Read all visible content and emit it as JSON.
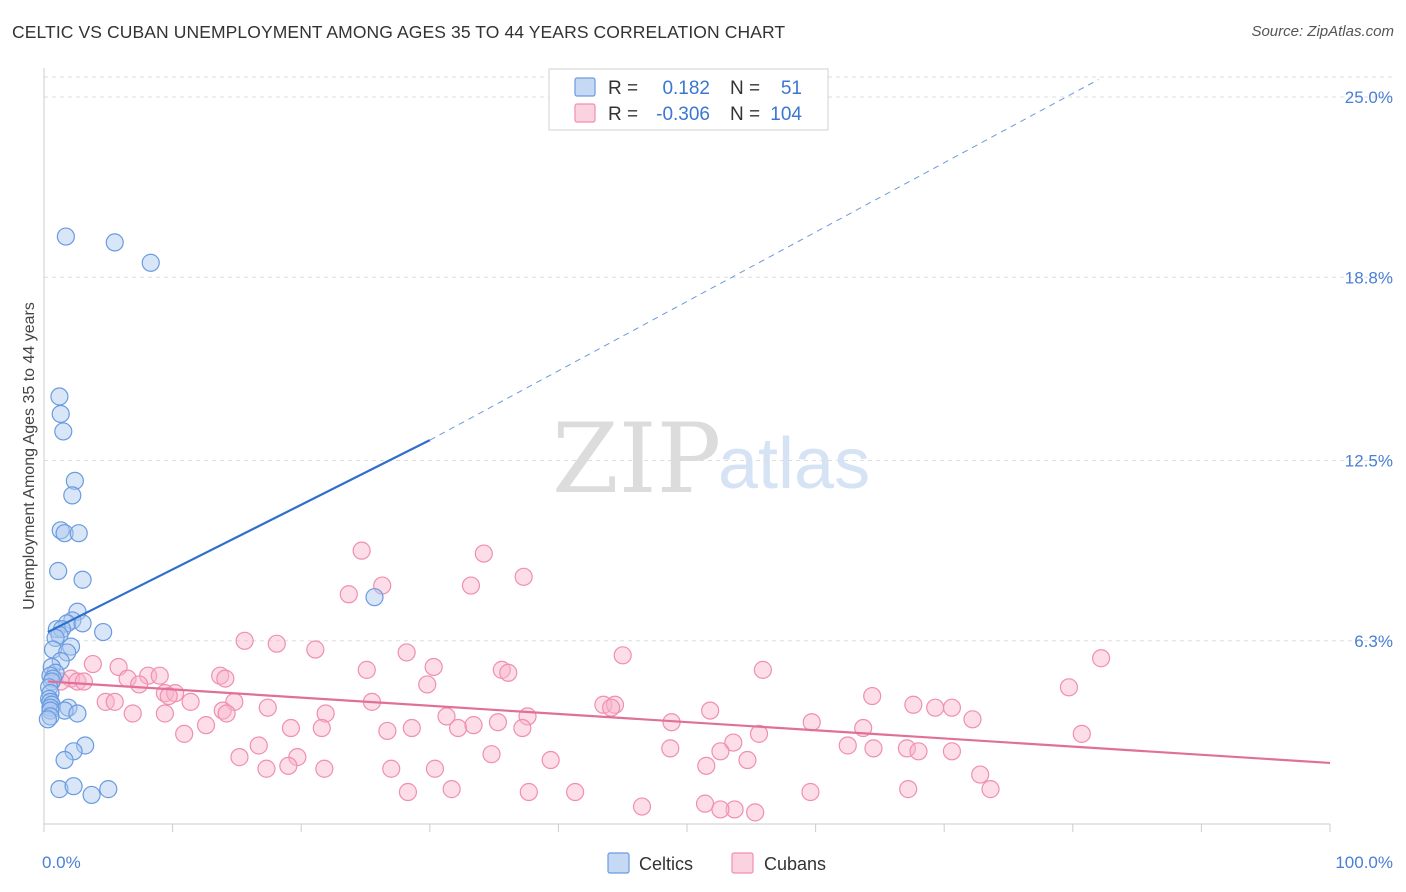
{
  "title": "CELTIC VS CUBAN UNEMPLOYMENT AMONG AGES 35 TO 44 YEARS CORRELATION CHART",
  "source": "Source: ZipAtlas.com",
  "watermark": {
    "zip": "ZIP",
    "atlas": "atlas"
  },
  "legend": {
    "r_label": "R =",
    "n_label": "N =",
    "rows": [
      {
        "r": "0.182",
        "n": "51"
      },
      {
        "r": "-0.306",
        "n": "104"
      }
    ]
  },
  "chart_data": {
    "type": "scatter",
    "xlabel": "",
    "ylabel": "Unemployment Among Ages 35 to 44 years",
    "xlim": [
      0,
      100
    ],
    "ylim": [
      0,
      25.0
    ],
    "x_ticks": [
      {
        "value": 0,
        "label": "0.0%"
      },
      {
        "value": 100,
        "label": "100.0%"
      }
    ],
    "y_ticks": [
      {
        "value": 6.3,
        "label": "6.3%"
      },
      {
        "value": 12.5,
        "label": "12.5%"
      },
      {
        "value": 18.8,
        "label": "18.8%"
      },
      {
        "value": 25.0,
        "label": "25.0%"
      }
    ],
    "grid": true,
    "legend_position": "bottom-center",
    "colors": {
      "celtics": "#6a9be0",
      "cubans": "#f08fb0",
      "celtics_line": "#2f6fcc",
      "cubans_line": "#e0709a"
    },
    "series": [
      {
        "name": "Celtics",
        "color": "#6a9be0",
        "trend": {
          "x0": 0.3,
          "y0": 6.6,
          "x1": 30,
          "y1": 13.2,
          "dash_to_x": 82,
          "dash_to_y": 25.6
        },
        "points": [
          [
            1.7,
            20.2
          ],
          [
            5.5,
            20.0
          ],
          [
            8.3,
            19.3
          ],
          [
            1.2,
            14.7
          ],
          [
            1.3,
            14.1
          ],
          [
            1.5,
            13.5
          ],
          [
            2.4,
            11.8
          ],
          [
            2.2,
            11.3
          ],
          [
            1.3,
            10.1
          ],
          [
            1.6,
            10.0
          ],
          [
            2.7,
            10.0
          ],
          [
            1.1,
            8.7
          ],
          [
            3.0,
            8.4
          ],
          [
            2.6,
            7.3
          ],
          [
            2.2,
            7.0
          ],
          [
            1.8,
            6.9
          ],
          [
            3.0,
            6.9
          ],
          [
            1.0,
            6.7
          ],
          [
            1.4,
            6.7
          ],
          [
            4.6,
            6.6
          ],
          [
            1.2,
            6.5
          ],
          [
            0.9,
            6.4
          ],
          [
            2.1,
            6.1
          ],
          [
            0.7,
            6.0
          ],
          [
            1.8,
            5.9
          ],
          [
            1.3,
            5.6
          ],
          [
            0.6,
            5.4
          ],
          [
            0.9,
            5.2
          ],
          [
            0.5,
            5.1
          ],
          [
            0.7,
            5.0
          ],
          [
            0.6,
            4.9
          ],
          [
            0.4,
            4.7
          ],
          [
            0.5,
            4.5
          ],
          [
            0.4,
            4.3
          ],
          [
            0.5,
            4.2
          ],
          [
            0.6,
            4.1
          ],
          [
            0.5,
            4.0
          ],
          [
            1.9,
            4.0
          ],
          [
            1.6,
            3.9
          ],
          [
            0.5,
            3.9
          ],
          [
            2.6,
            3.8
          ],
          [
            0.5,
            3.7
          ],
          [
            3.2,
            2.7
          ],
          [
            2.3,
            2.5
          ],
          [
            1.6,
            2.2
          ],
          [
            1.2,
            1.2
          ],
          [
            2.3,
            1.3
          ],
          [
            5.0,
            1.2
          ],
          [
            3.7,
            1.0
          ],
          [
            25.7,
            7.8
          ],
          [
            0.3,
            3.6
          ]
        ]
      },
      {
        "name": "Cubans",
        "color": "#f08fb0",
        "trend": {
          "x0": 0.3,
          "y0": 4.9,
          "x1": 100,
          "y1": 2.1
        },
        "points": [
          [
            24.7,
            9.4
          ],
          [
            34.2,
            9.3
          ],
          [
            37.3,
            8.5
          ],
          [
            26.3,
            8.2
          ],
          [
            33.2,
            8.2
          ],
          [
            23.7,
            7.9
          ],
          [
            15.6,
            6.3
          ],
          [
            18.1,
            6.2
          ],
          [
            21.1,
            6.0
          ],
          [
            28.2,
            5.9
          ],
          [
            45.0,
            5.8
          ],
          [
            82.2,
            5.7
          ],
          [
            3.8,
            5.5
          ],
          [
            5.8,
            5.4
          ],
          [
            30.3,
            5.4
          ],
          [
            25.1,
            5.3
          ],
          [
            35.6,
            5.3
          ],
          [
            55.9,
            5.3
          ],
          [
            36.1,
            5.2
          ],
          [
            8.1,
            5.1
          ],
          [
            9.0,
            5.1
          ],
          [
            13.7,
            5.1
          ],
          [
            6.5,
            5.0
          ],
          [
            14.1,
            5.0
          ],
          [
            2.1,
            5.0
          ],
          [
            1.3,
            4.9
          ],
          [
            2.6,
            4.9
          ],
          [
            3.1,
            4.9
          ],
          [
            7.4,
            4.8
          ],
          [
            29.8,
            4.8
          ],
          [
            79.7,
            4.7
          ],
          [
            9.4,
            4.5
          ],
          [
            10.2,
            4.5
          ],
          [
            9.7,
            4.4
          ],
          [
            64.4,
            4.4
          ],
          [
            11.4,
            4.2
          ],
          [
            25.5,
            4.2
          ],
          [
            14.8,
            4.2
          ],
          [
            4.8,
            4.2
          ],
          [
            5.5,
            4.2
          ],
          [
            43.5,
            4.1
          ],
          [
            44.4,
            4.1
          ],
          [
            67.6,
            4.1
          ],
          [
            69.3,
            4.0
          ],
          [
            70.6,
            4.0
          ],
          [
            17.4,
            4.0
          ],
          [
            13.9,
            3.9
          ],
          [
            44.1,
            4.0
          ],
          [
            51.8,
            3.9
          ],
          [
            6.9,
            3.8
          ],
          [
            21.9,
            3.8
          ],
          [
            14.2,
            3.8
          ],
          [
            9.4,
            3.8
          ],
          [
            31.3,
            3.7
          ],
          [
            37.6,
            3.7
          ],
          [
            72.2,
            3.6
          ],
          [
            59.7,
            3.5
          ],
          [
            12.6,
            3.4
          ],
          [
            28.6,
            3.3
          ],
          [
            48.8,
            3.5
          ],
          [
            19.2,
            3.3
          ],
          [
            21.6,
            3.3
          ],
          [
            32.2,
            3.3
          ],
          [
            63.7,
            3.3
          ],
          [
            80.7,
            3.1
          ],
          [
            10.9,
            3.1
          ],
          [
            55.6,
            3.1
          ],
          [
            26.7,
            3.2
          ],
          [
            33.4,
            3.4
          ],
          [
            35.3,
            3.5
          ],
          [
            37.2,
            3.3
          ],
          [
            16.7,
            2.7
          ],
          [
            53.6,
            2.8
          ],
          [
            62.5,
            2.7
          ],
          [
            64.5,
            2.6
          ],
          [
            48.7,
            2.6
          ],
          [
            52.6,
            2.5
          ],
          [
            67.1,
            2.6
          ],
          [
            70.6,
            2.5
          ],
          [
            68.0,
            2.5
          ],
          [
            34.8,
            2.4
          ],
          [
            15.2,
            2.3
          ],
          [
            19.7,
            2.3
          ],
          [
            39.4,
            2.2
          ],
          [
            54.7,
            2.2
          ],
          [
            51.5,
            2.0
          ],
          [
            19.0,
            2.0
          ],
          [
            27.0,
            1.9
          ],
          [
            30.4,
            1.9
          ],
          [
            17.3,
            1.9
          ],
          [
            21.8,
            1.9
          ],
          [
            72.8,
            1.7
          ],
          [
            37.7,
            1.1
          ],
          [
            41.3,
            1.1
          ],
          [
            59.6,
            1.1
          ],
          [
            73.6,
            1.2
          ],
          [
            67.2,
            1.2
          ],
          [
            28.3,
            1.1
          ],
          [
            31.7,
            1.2
          ],
          [
            46.5,
            0.6
          ],
          [
            51.4,
            0.7
          ],
          [
            53.7,
            0.5
          ],
          [
            52.6,
            0.5
          ],
          [
            55.3,
            0.4
          ]
        ]
      }
    ]
  }
}
